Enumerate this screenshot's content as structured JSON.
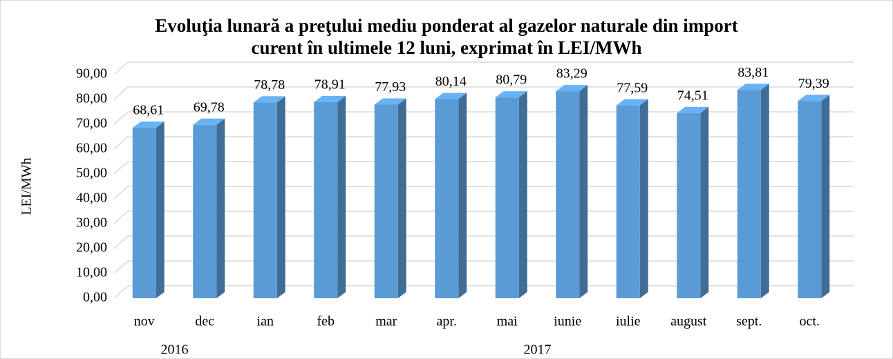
{
  "chart_data": {
    "type": "bar3d",
    "title": [
      "Evoluţia lunară a preţului mediu ponderat al gazelor naturale din import",
      "curent în ultimele 12 luni, exprimat în LEI/MWh"
    ],
    "y_label": "LEI/MWh",
    "categories": [
      "nov",
      "dec",
      "ian",
      "feb",
      "mar",
      "apr.",
      "mai",
      "iunie",
      "iulie",
      "august",
      "sept.",
      "oct."
    ],
    "groups": [
      {
        "name": "2016",
        "size": 2
      },
      {
        "name": "2017",
        "size": 10
      }
    ],
    "values": [
      68.61,
      69.78,
      78.78,
      78.91,
      77.93,
      80.14,
      80.79,
      83.29,
      77.59,
      74.51,
      83.81,
      79.39
    ],
    "value_labels": [
      "68,61",
      "69,78",
      "78,78",
      "78,91",
      "77,93",
      "80,14",
      "80,79",
      "83,29",
      "77,59",
      "74,51",
      "83,81",
      "79,39"
    ],
    "color": "#5b9bd5",
    "ylim": [
      0,
      90
    ],
    "yticks": [
      {
        "value": 0,
        "label": "0,00"
      },
      {
        "value": 10,
        "label": "10,00"
      },
      {
        "value": 20,
        "label": "20,00"
      },
      {
        "value": 30,
        "label": "30,00"
      },
      {
        "value": 40,
        "label": "40,00"
      },
      {
        "value": 50,
        "label": "50,00"
      },
      {
        "value": 60,
        "label": "60,00"
      },
      {
        "value": 70,
        "label": "70,00"
      },
      {
        "value": 80,
        "label": "80,00"
      },
      {
        "value": 90,
        "label": "90,00"
      }
    ],
    "grid": true
  }
}
